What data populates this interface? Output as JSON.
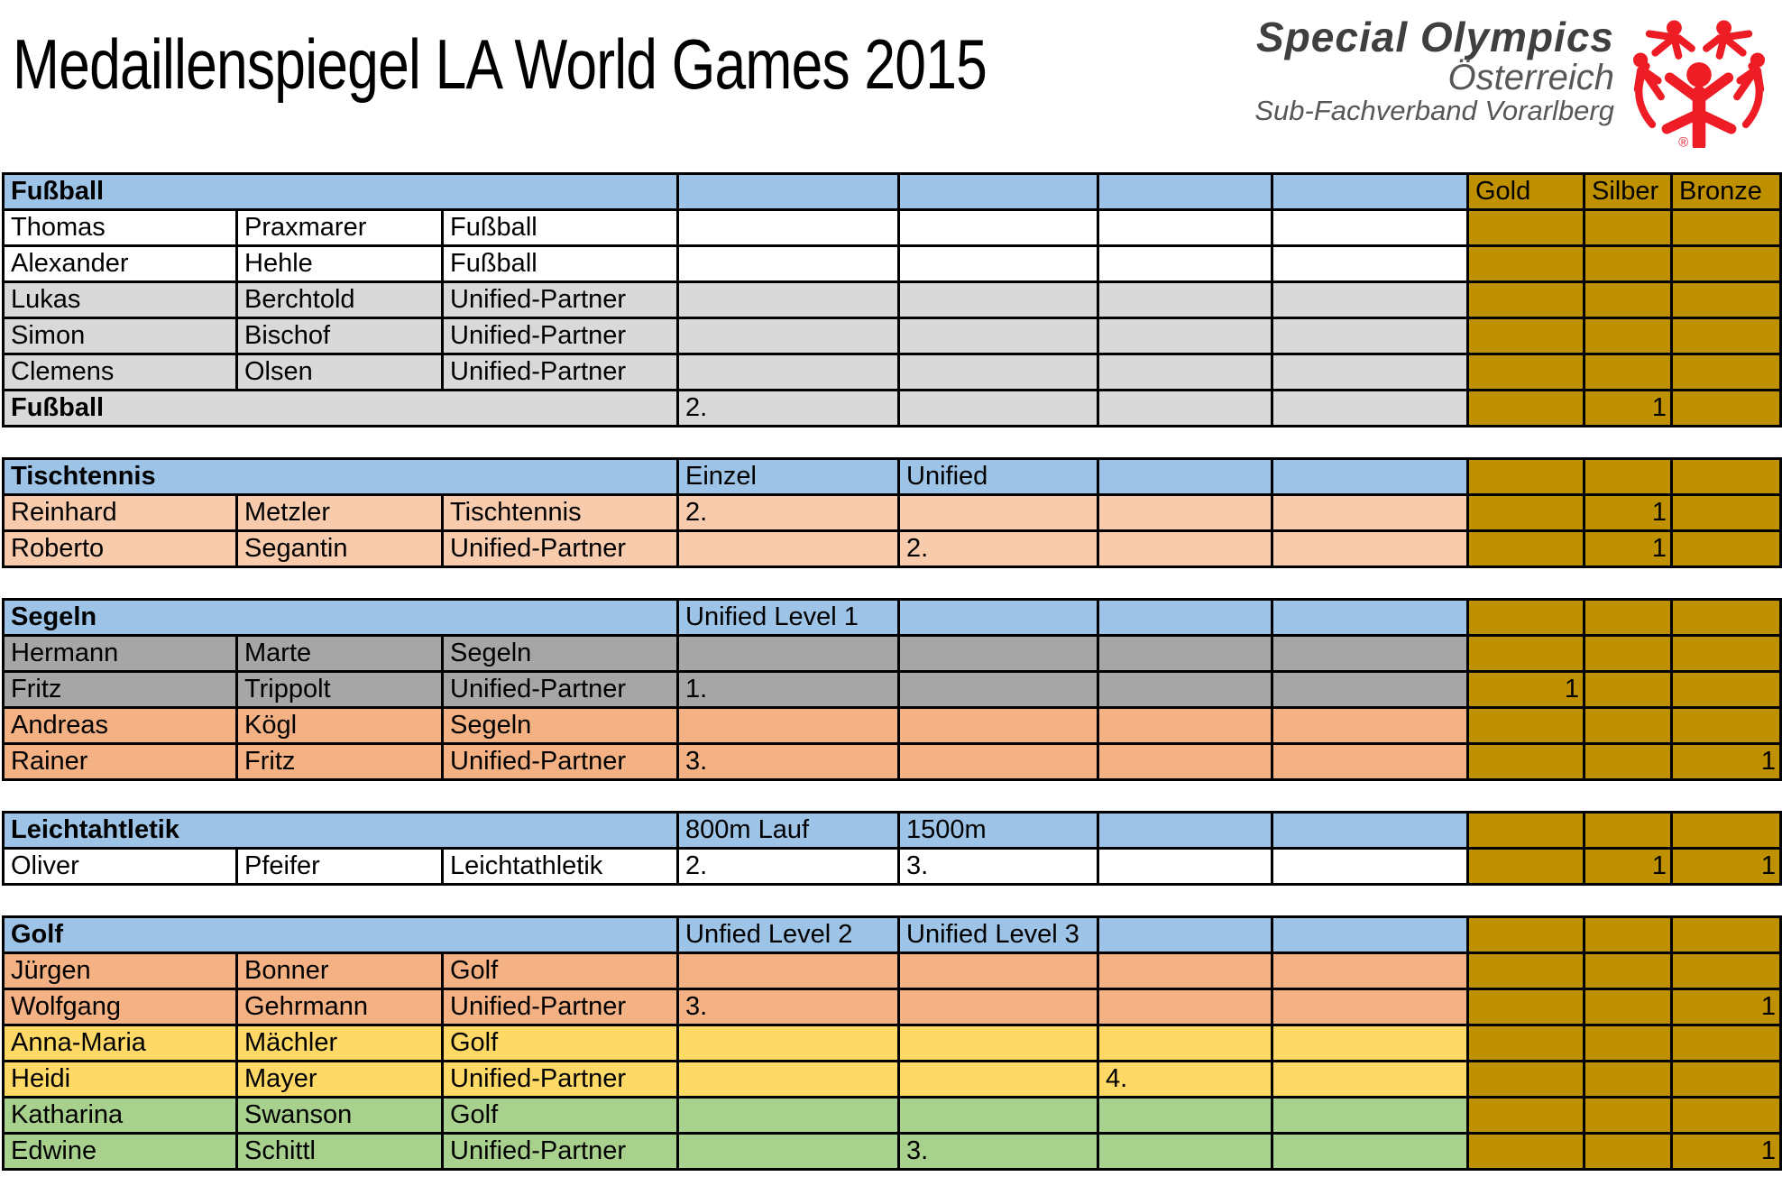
{
  "title": "Medaillenspiegel LA World Games 2015",
  "logo": {
    "line1": "Special Olympics",
    "line2": "Österreich",
    "line3": "Sub-Fachverband Vorarlberg",
    "registered_mark": "®",
    "brand_red": "#EE1C25",
    "text_dark": "#3F3F3E",
    "text_gray": "#575756"
  },
  "colors": {
    "header_blue": "#9DC3E6",
    "medal_gold": "#BF9000",
    "row_white": "#FFFFFF",
    "row_gray_light": "#D9D9D9",
    "row_gray": "#A6A6A6",
    "row_peach": "#F8CBAD",
    "row_orange": "#F4B183",
    "row_yellow": "#FFD966",
    "row_green": "#A9D18E",
    "border": "#000000"
  },
  "tables": [
    {
      "sport": "Fußball",
      "header": {
        "label": "Fußball",
        "cols": [
          "",
          "",
          "",
          ""
        ],
        "medals": [
          "Gold",
          "Silber",
          "Bronze"
        ]
      },
      "rows": [
        {
          "bg": "white",
          "cells": [
            "Thomas",
            "Praxmarer",
            "Fußball",
            "",
            "",
            "",
            "",
            "",
            "",
            ""
          ]
        },
        {
          "bg": "white",
          "cells": [
            "Alexander",
            "Hehle",
            "Fußball",
            "",
            "",
            "",
            "",
            "",
            "",
            ""
          ]
        },
        {
          "bg": "gray-light",
          "cells": [
            "Lukas",
            "Berchtold",
            "Unified-Partner",
            "",
            "",
            "",
            "",
            "",
            "",
            ""
          ]
        },
        {
          "bg": "gray-light",
          "cells": [
            "Simon",
            "Bischof",
            "Unified-Partner",
            "",
            "",
            "",
            "",
            "",
            "",
            ""
          ]
        },
        {
          "bg": "gray-light",
          "cells": [
            "Clemens",
            "Olsen",
            "Unified-Partner",
            "",
            "",
            "",
            "",
            "",
            "",
            ""
          ]
        }
      ],
      "summary": {
        "bg": "gray-light",
        "cells": [
          "Fußball",
          "",
          "",
          "2.",
          "",
          "",
          "",
          "",
          "1",
          ""
        ]
      }
    },
    {
      "sport": "Tischtennis",
      "header": {
        "label": "Tischtennis",
        "cols": [
          "Einzel",
          "Unified",
          "",
          ""
        ],
        "medals": [
          "",
          "",
          ""
        ]
      },
      "rows": [
        {
          "bg": "peach",
          "cells": [
            "Reinhard",
            "Metzler",
            "Tischtennis",
            "2.",
            "",
            "",
            "",
            "",
            "1",
            ""
          ]
        },
        {
          "bg": "peach",
          "cells": [
            "Roberto",
            "Segantin",
            "Unified-Partner",
            "",
            "2.",
            "",
            "",
            "",
            "1",
            ""
          ]
        }
      ]
    },
    {
      "sport": "Segeln",
      "header": {
        "label": "Segeln",
        "cols": [
          "Unified Level 1",
          "",
          "",
          ""
        ],
        "medals": [
          "",
          "",
          ""
        ]
      },
      "rows": [
        {
          "bg": "gray",
          "cells": [
            "Hermann",
            "Marte",
            "Segeln",
            "",
            "",
            "",
            "",
            "",
            "",
            ""
          ]
        },
        {
          "bg": "gray",
          "cells": [
            "Fritz",
            "Trippolt",
            "Unified-Partner",
            "1.",
            "",
            "",
            "",
            "1",
            "",
            ""
          ]
        },
        {
          "bg": "orange",
          "cells": [
            "Andreas",
            "Kögl",
            "Segeln",
            "",
            "",
            "",
            "",
            "",
            "",
            ""
          ]
        },
        {
          "bg": "orange",
          "cells": [
            "Rainer",
            "Fritz",
            "Unified-Partner",
            "3.",
            "",
            "",
            "",
            "",
            "",
            "1"
          ]
        }
      ]
    },
    {
      "sport": "Leichtahtletik",
      "header": {
        "label": "Leichtahtletik",
        "cols": [
          "800m Lauf",
          "1500m",
          "",
          ""
        ],
        "medals": [
          "",
          "",
          ""
        ]
      },
      "rows": [
        {
          "bg": "white",
          "cells": [
            "Oliver",
            "Pfeifer",
            "Leichtathletik",
            "2.",
            "3.",
            "",
            "",
            "",
            "1",
            "1"
          ]
        }
      ]
    },
    {
      "sport": "Golf",
      "header": {
        "label": "Golf",
        "cols": [
          "Unfied Level 2",
          "Unified Level 3",
          "",
          ""
        ],
        "medals": [
          "",
          "",
          ""
        ]
      },
      "rows": [
        {
          "bg": "orange",
          "cells": [
            "Jürgen",
            "Bonner",
            "Golf",
            "",
            "",
            "",
            "",
            "",
            "",
            ""
          ]
        },
        {
          "bg": "orange",
          "cells": [
            "Wolfgang",
            "Gehrmann",
            "Unified-Partner",
            "3.",
            "",
            "",
            "",
            "",
            "",
            "1"
          ]
        },
        {
          "bg": "yellow",
          "cells": [
            "Anna-Maria",
            "Mächler",
            "Golf",
            "",
            "",
            "",
            "",
            "",
            "",
            ""
          ]
        },
        {
          "bg": "yellow",
          "cells": [
            "Heidi",
            "Mayer",
            "Unified-Partner",
            "",
            "",
            "4.",
            "",
            "",
            "",
            ""
          ]
        },
        {
          "bg": "green",
          "cells": [
            "Katharina",
            "Swanson",
            "Golf",
            "",
            "",
            "",
            "",
            "",
            "",
            ""
          ]
        },
        {
          "bg": "green",
          "cells": [
            "Edwine",
            "Schittl",
            "Unified-Partner",
            "",
            "3.",
            "",
            "",
            "",
            "",
            "1"
          ]
        }
      ]
    }
  ]
}
